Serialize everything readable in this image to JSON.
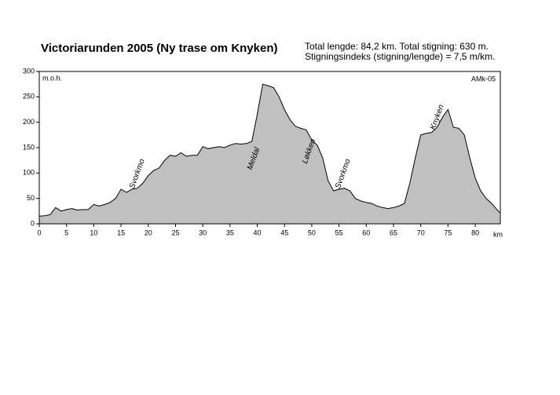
{
  "chart_data": {
    "type": "area",
    "title": "Victoriarunden 2005 (Ny trase om Knyken)",
    "info": [
      "Total lengde: 84,2 km. Total stigning:  630 m.",
      "Stigningsindeks (stigning/lengde) = 7,5 m/km."
    ],
    "ylabel": "m.o.h.",
    "xlabel": "km",
    "credit": "AMk-05",
    "annotations": [
      "Svorkmo",
      "Meldal",
      "Løkken",
      "Svorkmo",
      "Knyken"
    ],
    "x": [
      0,
      1,
      2,
      3,
      4,
      5,
      6,
      7,
      8,
      9,
      10,
      11,
      12,
      13,
      14,
      15,
      16,
      17,
      18,
      19,
      20,
      21,
      22,
      23,
      24,
      25,
      26,
      27,
      28,
      29,
      30,
      31,
      32,
      33,
      34,
      35,
      36,
      37,
      38,
      39,
      40,
      41,
      42,
      43,
      44,
      45,
      46,
      47,
      48,
      49,
      50,
      51,
      52,
      53,
      54,
      55,
      56,
      57,
      58,
      59,
      60,
      61,
      62,
      63,
      64,
      65,
      66,
      67,
      68,
      69,
      70,
      71,
      72,
      73,
      74,
      75,
      76,
      77,
      78,
      79,
      80,
      81,
      82,
      83,
      84,
      84.5
    ],
    "values": [
      15,
      16,
      18,
      32,
      25,
      28,
      30,
      27,
      28,
      28,
      38,
      35,
      38,
      42,
      50,
      68,
      62,
      68,
      70,
      80,
      95,
      105,
      110,
      125,
      135,
      133,
      140,
      133,
      135,
      135,
      152,
      148,
      150,
      152,
      150,
      155,
      158,
      157,
      158,
      162,
      215,
      275,
      272,
      268,
      250,
      225,
      205,
      192,
      188,
      185,
      165,
      155,
      130,
      85,
      65,
      68,
      70,
      65,
      50,
      45,
      42,
      40,
      35,
      32,
      30,
      32,
      35,
      40,
      80,
      130,
      175,
      178,
      180,
      190,
      210,
      225,
      190,
      188,
      175,
      130,
      90,
      65,
      50,
      40,
      28,
      22
    ],
    "color": "#c0c0c0",
    "xlim": [
      0,
      84.6
    ],
    "ylim": [
      0,
      300
    ],
    "xticks": [
      0,
      5,
      10,
      15,
      20,
      25,
      30,
      35,
      40,
      45,
      50,
      55,
      60,
      65,
      70,
      75,
      80
    ],
    "yticks": [
      0,
      50,
      100,
      150,
      200,
      250,
      300
    ]
  }
}
